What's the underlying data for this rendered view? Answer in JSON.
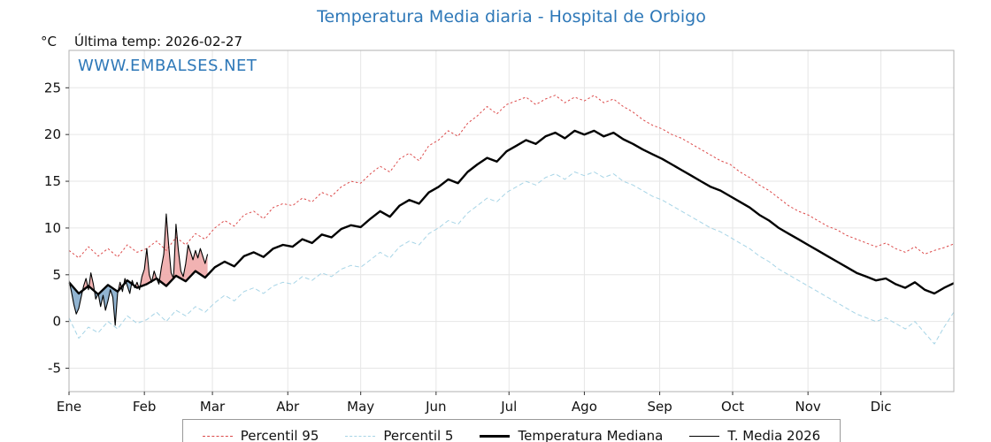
{
  "title": "Temperatura Media diaria - Hospital de Orbigo",
  "header": {
    "unit": "°C",
    "last_temp": "Última temp: 2026-02-27"
  },
  "watermark": "WWW.EMBALSES.NET",
  "colors": {
    "title_blue": "#2e78b8",
    "p95_red": "#dc4a4a",
    "p5_blue": "#a6d4e6",
    "median_black": "#000000",
    "grid": "#e6e6e6",
    "plot_border": "#b0b0b0"
  },
  "chart_data": {
    "type": "line",
    "title": "Temperatura Media diaria - Hospital de Orbigo",
    "ylabel": "°C",
    "ylim": [
      -7.5,
      29
    ],
    "yticks": [
      -5,
      0,
      5,
      10,
      15,
      20,
      25
    ],
    "x_months": [
      "Ene",
      "Feb",
      "Mar",
      "Abr",
      "May",
      "Jun",
      "Jul",
      "Ago",
      "Sep",
      "Oct",
      "Nov",
      "Dic"
    ],
    "month_start_days": [
      1,
      32,
      60,
      91,
      121,
      152,
      182,
      213,
      244,
      274,
      305,
      335
    ],
    "days_in_year": 365,
    "grid": true,
    "legend_position": "bottom",
    "series": [
      {
        "name": "Percentil 95",
        "color": "#dc4a4a",
        "style": "dashed",
        "dash": "2.5,2.5",
        "start_day": 1,
        "step_days": 4,
        "values": [
          7.6,
          6.8,
          8.0,
          7.0,
          7.8,
          6.9,
          8.2,
          7.4,
          7.8,
          8.6,
          7.6,
          9.0,
          8.2,
          9.4,
          8.8,
          10.0,
          10.8,
          10.2,
          11.4,
          11.8,
          11.0,
          12.2,
          12.6,
          12.4,
          13.2,
          12.8,
          13.8,
          13.4,
          14.4,
          15.0,
          14.8,
          15.8,
          16.6,
          16.0,
          17.4,
          18.0,
          17.2,
          18.8,
          19.4,
          20.4,
          19.8,
          21.2,
          22.0,
          23.0,
          22.2,
          23.2,
          23.6,
          24.0,
          23.2,
          23.8,
          24.2,
          23.4,
          24.0,
          23.6,
          24.2,
          23.4,
          23.8,
          23.0,
          22.4,
          21.6,
          21.0,
          20.6,
          20.0,
          19.6,
          19.0,
          18.4,
          17.8,
          17.2,
          16.8,
          16.0,
          15.4,
          14.6,
          14.0,
          13.2,
          12.4,
          11.8,
          11.4,
          10.8,
          10.2,
          9.8,
          9.2,
          8.8,
          8.4,
          8.0,
          8.4,
          7.8,
          7.4,
          8.0,
          7.2,
          7.6,
          7.9,
          8.3
        ]
      },
      {
        "name": "Percentil 5",
        "color": "#a6d4e6",
        "style": "dashed",
        "dash": "5,3",
        "start_day": 1,
        "step_days": 4,
        "values": [
          0.4,
          -1.8,
          -0.6,
          -1.2,
          0.0,
          -0.8,
          0.6,
          -0.2,
          0.2,
          1.0,
          0.0,
          1.2,
          0.6,
          1.6,
          1.0,
          2.0,
          2.8,
          2.2,
          3.2,
          3.6,
          3.0,
          3.8,
          4.2,
          4.0,
          4.8,
          4.4,
          5.2,
          4.8,
          5.6,
          6.0,
          5.8,
          6.6,
          7.4,
          6.8,
          8.0,
          8.6,
          8.2,
          9.4,
          10.0,
          10.8,
          10.4,
          11.6,
          12.4,
          13.2,
          12.8,
          13.8,
          14.4,
          15.0,
          14.6,
          15.4,
          15.8,
          15.2,
          16.0,
          15.6,
          16.0,
          15.4,
          15.8,
          15.0,
          14.6,
          14.0,
          13.4,
          13.0,
          12.4,
          11.8,
          11.2,
          10.6,
          10.0,
          9.6,
          9.0,
          8.4,
          7.8,
          7.0,
          6.4,
          5.6,
          5.0,
          4.4,
          3.8,
          3.2,
          2.6,
          2.0,
          1.4,
          0.8,
          0.4,
          0.0,
          0.4,
          -0.2,
          -0.8,
          0.0,
          -1.2,
          -2.4,
          -0.6,
          1.0
        ]
      },
      {
        "name": "Temperatura Mediana",
        "color": "#000000",
        "style": "solid-thick",
        "dash": null,
        "start_day": 1,
        "step_days": 4,
        "values": [
          4.2,
          3.0,
          3.8,
          2.9,
          3.9,
          3.2,
          4.4,
          3.6,
          4.0,
          4.6,
          3.8,
          4.9,
          4.3,
          5.4,
          4.7,
          5.8,
          6.4,
          5.9,
          7.0,
          7.4,
          6.9,
          7.8,
          8.2,
          8.0,
          8.8,
          8.4,
          9.3,
          9.0,
          9.9,
          10.3,
          10.1,
          11.0,
          11.8,
          11.2,
          12.4,
          13.0,
          12.6,
          13.8,
          14.4,
          15.2,
          14.8,
          16.0,
          16.8,
          17.5,
          17.1,
          18.2,
          18.8,
          19.4,
          19.0,
          19.8,
          20.2,
          19.6,
          20.4,
          20.0,
          20.4,
          19.8,
          20.2,
          19.5,
          19.0,
          18.4,
          17.9,
          17.4,
          16.8,
          16.2,
          15.6,
          15.0,
          14.4,
          14.0,
          13.4,
          12.8,
          12.2,
          11.4,
          10.8,
          10.0,
          9.4,
          8.8,
          8.2,
          7.6,
          7.0,
          6.4,
          5.8,
          5.2,
          4.8,
          4.4,
          4.6,
          4.0,
          3.6,
          4.2,
          3.4,
          3.0,
          3.6,
          4.1
        ]
      },
      {
        "name": "T. Media 2026",
        "color": "#000000",
        "style": "solid-thin",
        "dash": null,
        "start_day": 1,
        "step_days": 1,
        "values": [
          4.4,
          3.2,
          1.8,
          0.8,
          1.4,
          2.6,
          3.8,
          4.6,
          3.4,
          5.2,
          4.0,
          2.4,
          3.0,
          1.6,
          2.8,
          1.2,
          2.2,
          3.4,
          2.6,
          -0.4,
          3.0,
          4.2,
          3.2,
          4.6,
          3.8,
          3.0,
          4.4,
          3.6,
          4.2,
          3.4,
          4.8,
          5.6,
          7.8,
          5.0,
          4.2,
          5.4,
          4.6,
          4.0,
          5.8,
          7.2,
          11.5,
          8.2,
          5.2,
          4.6,
          10.4,
          7.6,
          5.4,
          4.8,
          6.2,
          8.2,
          7.4,
          6.6,
          7.6,
          6.8,
          7.8,
          7.0,
          6.2,
          7.2
        ]
      }
    ],
    "fills": {
      "between": [
        "T. Media 2026",
        "Temperatura Mediana"
      ],
      "above_color": "#efaaaa",
      "below_color": "#85accc",
      "opacity": 0.9
    }
  }
}
